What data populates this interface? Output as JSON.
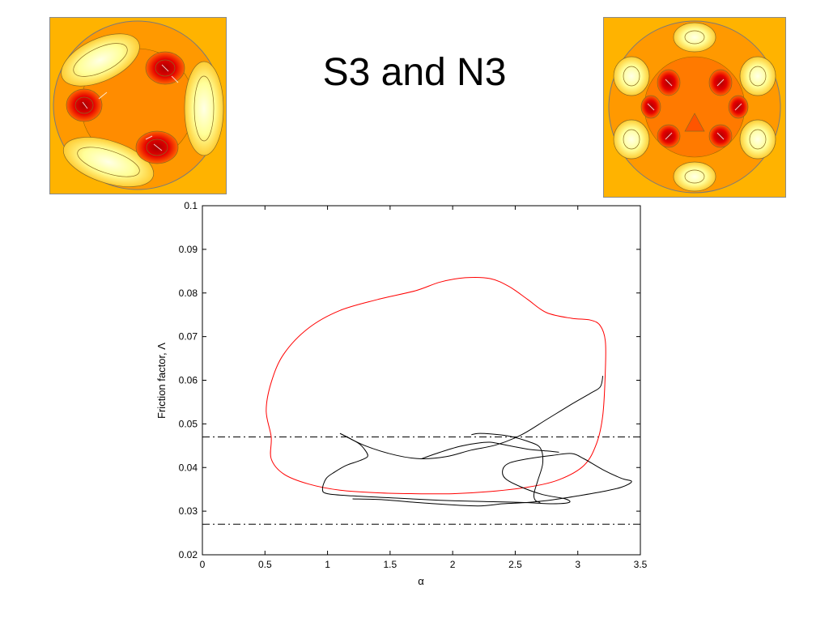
{
  "slide": {
    "title": "S3 and N3",
    "left_image": "S3 flow cross-section contour plot",
    "right_image": "N3 flow cross-section contour plot"
  },
  "colors": {
    "background_fill": "#ffb300",
    "low_contour": "#ff8800",
    "hot_spot": "#cc0000",
    "high_contour": "#ffffcc",
    "red_curve": "#ff0000",
    "black_curve": "#000000"
  },
  "chart_data": {
    "type": "line",
    "title": "",
    "xlabel": "α",
    "ylabel": "Friction factor, Λ",
    "xlim": [
      0,
      3.5
    ],
    "ylim": [
      0.02,
      0.1
    ],
    "xticks": [
      0,
      0.5,
      1,
      1.5,
      2,
      2.5,
      3,
      3.5
    ],
    "xtick_labels": [
      "0",
      "0.5",
      "1",
      "1.5",
      "2",
      "2.5",
      "3",
      "3.5"
    ],
    "yticks": [
      0.02,
      0.03,
      0.04,
      0.05,
      0.06,
      0.07,
      0.08,
      0.09,
      0.1
    ],
    "ytick_labels": [
      "0.02",
      "0.03",
      "0.04",
      "0.05",
      "0.06",
      "0.07",
      "0.08",
      "0.09",
      "0.1"
    ],
    "grid": false,
    "legend": "none",
    "series": [
      {
        "color": "#ff0000",
        "style": "solid",
        "closed": true,
        "x": [
          0.55,
          0.51,
          0.55,
          0.65,
          0.85,
          1.1,
          1.4,
          1.7,
          1.9,
          2.1,
          2.3,
          2.45,
          2.6,
          2.75,
          2.95,
          3.1,
          3.18,
          3.22,
          3.22,
          3.2,
          3.15,
          3.05,
          2.85,
          2.6,
          2.3,
          2.0,
          1.7,
          1.4,
          1.1,
          0.85,
          0.65,
          0.55
        ],
        "y": [
          0.047,
          0.053,
          0.0595,
          0.066,
          0.072,
          0.076,
          0.0785,
          0.0805,
          0.0825,
          0.0835,
          0.0833,
          0.0815,
          0.0785,
          0.0755,
          0.0742,
          0.0738,
          0.0725,
          0.069,
          0.062,
          0.052,
          0.0455,
          0.0405,
          0.0372,
          0.0355,
          0.0345,
          0.034,
          0.034,
          0.0342,
          0.0348,
          0.0362,
          0.0385,
          0.042
        ]
      },
      {
        "color": "#000000",
        "style": "solid",
        "closed": false,
        "x": [
          1.1,
          1.17,
          1.25,
          1.3,
          1.32,
          1.25,
          1.15,
          1.06,
          0.99,
          0.96,
          1.0,
          1.2,
          1.55,
          1.9,
          2.25,
          2.55,
          2.8,
          2.93,
          2.9,
          2.72,
          2.55,
          2.42,
          2.4,
          2.45,
          2.6,
          2.8,
          2.95,
          3.05,
          3.2,
          3.35,
          3.43,
          3.35,
          3.2,
          3.0,
          2.8,
          2.6,
          2.4,
          2.2,
          1.8,
          1.45,
          1.2
        ],
        "y": [
          0.0478,
          0.0468,
          0.0455,
          0.044,
          0.0425,
          0.0415,
          0.0405,
          0.039,
          0.0375,
          0.035,
          0.034,
          0.0335,
          0.033,
          0.0325,
          0.0322,
          0.032,
          0.0317,
          0.032,
          0.0328,
          0.0338,
          0.0355,
          0.0375,
          0.0395,
          0.041,
          0.042,
          0.0428,
          0.0432,
          0.042,
          0.0395,
          0.0375,
          0.0368,
          0.0355,
          0.0345,
          0.0335,
          0.0326,
          0.032,
          0.0317,
          0.0312,
          0.0318,
          0.0326,
          0.0328
        ]
      },
      {
        "color": "#000000",
        "style": "solid",
        "closed": false,
        "x": [
          1.1,
          1.3,
          1.55,
          1.75,
          1.95,
          2.15,
          2.35,
          2.55,
          2.75,
          2.95,
          3.1,
          3.18,
          3.2
        ],
        "y": [
          0.0478,
          0.045,
          0.0428,
          0.042,
          0.0425,
          0.044,
          0.0452,
          0.0475,
          0.051,
          0.0545,
          0.057,
          0.0585,
          0.061
        ]
      },
      {
        "color": "#000000",
        "style": "solid",
        "closed": false,
        "x": [
          1.75,
          1.9,
          2.05,
          2.18,
          2.3,
          2.45,
          2.6,
          2.75,
          2.85
        ],
        "y": [
          0.042,
          0.0435,
          0.0448,
          0.0455,
          0.0458,
          0.045,
          0.0442,
          0.0438,
          0.0435
        ]
      },
      {
        "color": "#000000",
        "style": "solid",
        "closed": false,
        "x": [
          2.15,
          2.2,
          2.3,
          2.45,
          2.6,
          2.7,
          2.72,
          2.68,
          2.65,
          2.66,
          2.7
        ],
        "y": [
          0.0475,
          0.0478,
          0.0477,
          0.0472,
          0.046,
          0.0445,
          0.041,
          0.037,
          0.034,
          0.0325,
          0.032
        ]
      }
    ],
    "reference_lines": [
      {
        "y": 0.047,
        "style": "dashdot",
        "color": "#000000"
      },
      {
        "y": 0.027,
        "style": "dashdot",
        "color": "#000000"
      }
    ]
  }
}
